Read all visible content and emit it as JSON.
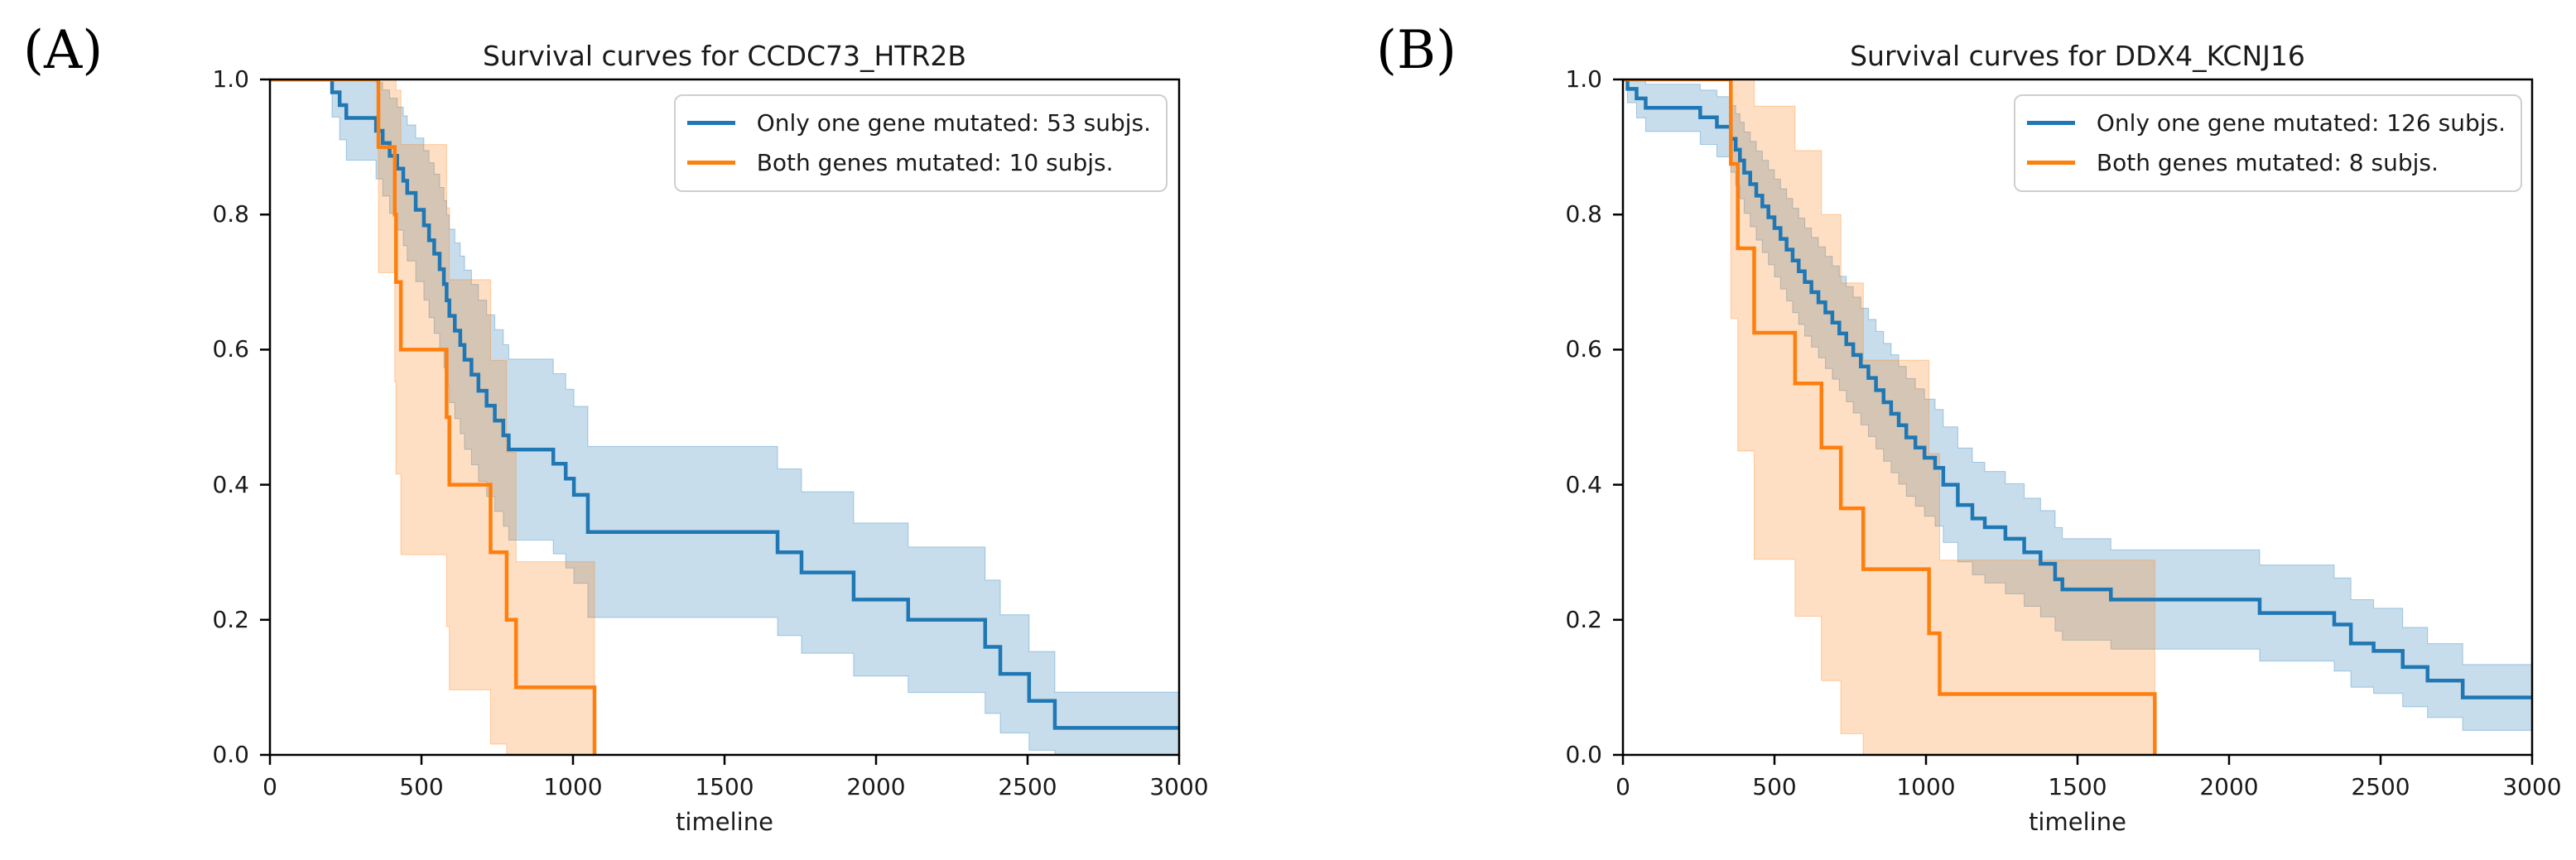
{
  "panel_labels": [
    "(A)",
    "(B)"
  ],
  "colors": {
    "series_blue": "#1f77b4",
    "series_orange": "#ff7f0e",
    "axis": "#000000",
    "text": "#1a1a1a",
    "legend_border": "#cfcfcf",
    "band_opacity": 0.25
  },
  "chart_data": [
    {
      "type": "line",
      "subtype": "kaplan_meier_step",
      "title": "Survival curves for CCDC73_HTR2B",
      "xlabel": "timeline",
      "ylabel": "",
      "xlim": [
        0,
        3000
      ],
      "ylim": [
        0.0,
        1.0
      ],
      "xticks": [
        0,
        500,
        1000,
        1500,
        2000,
        2500,
        3000
      ],
      "yticks": [
        0.0,
        0.2,
        0.4,
        0.6,
        0.8,
        1.0
      ],
      "grid": false,
      "legend_position": "upper right",
      "series": [
        {
          "name": "Only one gene mutated: 53 subjs.",
          "n_subjects": 53,
          "color_key": "series_blue",
          "confidence_band": true,
          "extend_to": 3000,
          "points": [
            [
              0,
              1.0
            ],
            [
              205,
              0.981
            ],
            [
              230,
              0.962
            ],
            [
              252,
              0.943
            ],
            [
              350,
              0.924
            ],
            [
              372,
              0.906
            ],
            [
              395,
              0.887
            ],
            [
              420,
              0.868
            ],
            [
              440,
              0.85
            ],
            [
              453,
              0.832
            ],
            [
              481,
              0.807
            ],
            [
              508,
              0.784
            ],
            [
              525,
              0.762
            ],
            [
              542,
              0.742
            ],
            [
              560,
              0.719
            ],
            [
              574,
              0.697
            ],
            [
              583,
              0.673
            ],
            [
              592,
              0.65
            ],
            [
              610,
              0.628
            ],
            [
              628,
              0.607
            ],
            [
              642,
              0.585
            ],
            [
              665,
              0.563
            ],
            [
              688,
              0.539
            ],
            [
              715,
              0.517
            ],
            [
              742,
              0.495
            ],
            [
              770,
              0.473
            ],
            [
              788,
              0.452
            ],
            [
              935,
              0.431
            ],
            [
              976,
              0.409
            ],
            [
              1003,
              0.385
            ],
            [
              1049,
              0.33
            ],
            [
              1675,
              0.3
            ],
            [
              1754,
              0.27
            ],
            [
              1926,
              0.23
            ],
            [
              2106,
              0.2
            ],
            [
              2360,
              0.16
            ],
            [
              2410,
              0.12
            ],
            [
              2505,
              0.08
            ],
            [
              2590,
              0.04
            ]
          ]
        },
        {
          "name": "Both genes mutated: 10 subjs.",
          "n_subjects": 10,
          "color_key": "series_orange",
          "confidence_band": true,
          "extend_to": null,
          "points": [
            [
              0,
              1.0
            ],
            [
              358,
              0.9
            ],
            [
              412,
              0.8
            ],
            [
              416,
              0.7
            ],
            [
              432,
              0.6
            ],
            [
              583,
              0.5
            ],
            [
              592,
              0.4
            ],
            [
              728,
              0.3
            ],
            [
              781,
              0.2
            ],
            [
              812,
              0.1
            ],
            [
              1071,
              0.0
            ]
          ]
        }
      ]
    },
    {
      "type": "line",
      "subtype": "kaplan_meier_step",
      "title": "Survival curves for DDX4_KCNJ16",
      "xlabel": "timeline",
      "ylabel": "",
      "xlim": [
        0,
        3000
      ],
      "ylim": [
        0.0,
        1.0
      ],
      "xticks": [
        0,
        500,
        1000,
        1500,
        2000,
        2500,
        3000
      ],
      "yticks": [
        0.0,
        0.2,
        0.4,
        0.6,
        0.8,
        1.0
      ],
      "grid": false,
      "legend_position": "upper right",
      "series": [
        {
          "name": "Only one gene mutated: 126 subjs.",
          "n_subjects": 126,
          "color_key": "series_blue",
          "confidence_band": true,
          "extend_to": 3000,
          "points": [
            [
              0,
              1.0
            ],
            [
              15,
              0.986
            ],
            [
              45,
              0.972
            ],
            [
              75,
              0.958
            ],
            [
              255,
              0.944
            ],
            [
              310,
              0.93
            ],
            [
              356,
              0.912
            ],
            [
              372,
              0.896
            ],
            [
              386,
              0.88
            ],
            [
              400,
              0.862
            ],
            [
              420,
              0.845
            ],
            [
              440,
              0.828
            ],
            [
              460,
              0.812
            ],
            [
              480,
              0.796
            ],
            [
              500,
              0.78
            ],
            [
              520,
              0.764
            ],
            [
              540,
              0.748
            ],
            [
              560,
              0.732
            ],
            [
              580,
              0.716
            ],
            [
              600,
              0.7
            ],
            [
              622,
              0.685
            ],
            [
              645,
              0.67
            ],
            [
              668,
              0.655
            ],
            [
              691,
              0.64
            ],
            [
              714,
              0.624
            ],
            [
              737,
              0.608
            ],
            [
              760,
              0.592
            ],
            [
              785,
              0.575
            ],
            [
              810,
              0.558
            ],
            [
              835,
              0.54
            ],
            [
              860,
              0.522
            ],
            [
              885,
              0.505
            ],
            [
              910,
              0.488
            ],
            [
              935,
              0.47
            ],
            [
              965,
              0.455
            ],
            [
              995,
              0.44
            ],
            [
              1030,
              0.425
            ],
            [
              1057,
              0.4
            ],
            [
              1105,
              0.37
            ],
            [
              1153,
              0.35
            ],
            [
              1194,
              0.337
            ],
            [
              1262,
              0.32
            ],
            [
              1324,
              0.3
            ],
            [
              1378,
              0.283
            ],
            [
              1426,
              0.26
            ],
            [
              1450,
              0.245
            ],
            [
              1610,
              0.23
            ],
            [
              2101,
              0.21
            ],
            [
              2347,
              0.193
            ],
            [
              2402,
              0.165
            ],
            [
              2477,
              0.154
            ],
            [
              2573,
              0.13
            ],
            [
              2655,
              0.11
            ],
            [
              2771,
              0.085
            ]
          ]
        },
        {
          "name": "Both genes mutated: 8 subjs.",
          "n_subjects": 8,
          "color_key": "series_orange",
          "confidence_band": true,
          "extend_to": null,
          "points": [
            [
              0,
              1.0
            ],
            [
              356,
              0.875
            ],
            [
              379,
              0.75
            ],
            [
              433,
              0.625
            ],
            [
              568,
              0.55
            ],
            [
              655,
              0.455
            ],
            [
              719,
              0.365
            ],
            [
              793,
              0.275
            ],
            [
              1010,
              0.18
            ],
            [
              1045,
              0.09
            ],
            [
              1755,
              0.0
            ]
          ]
        }
      ]
    }
  ]
}
